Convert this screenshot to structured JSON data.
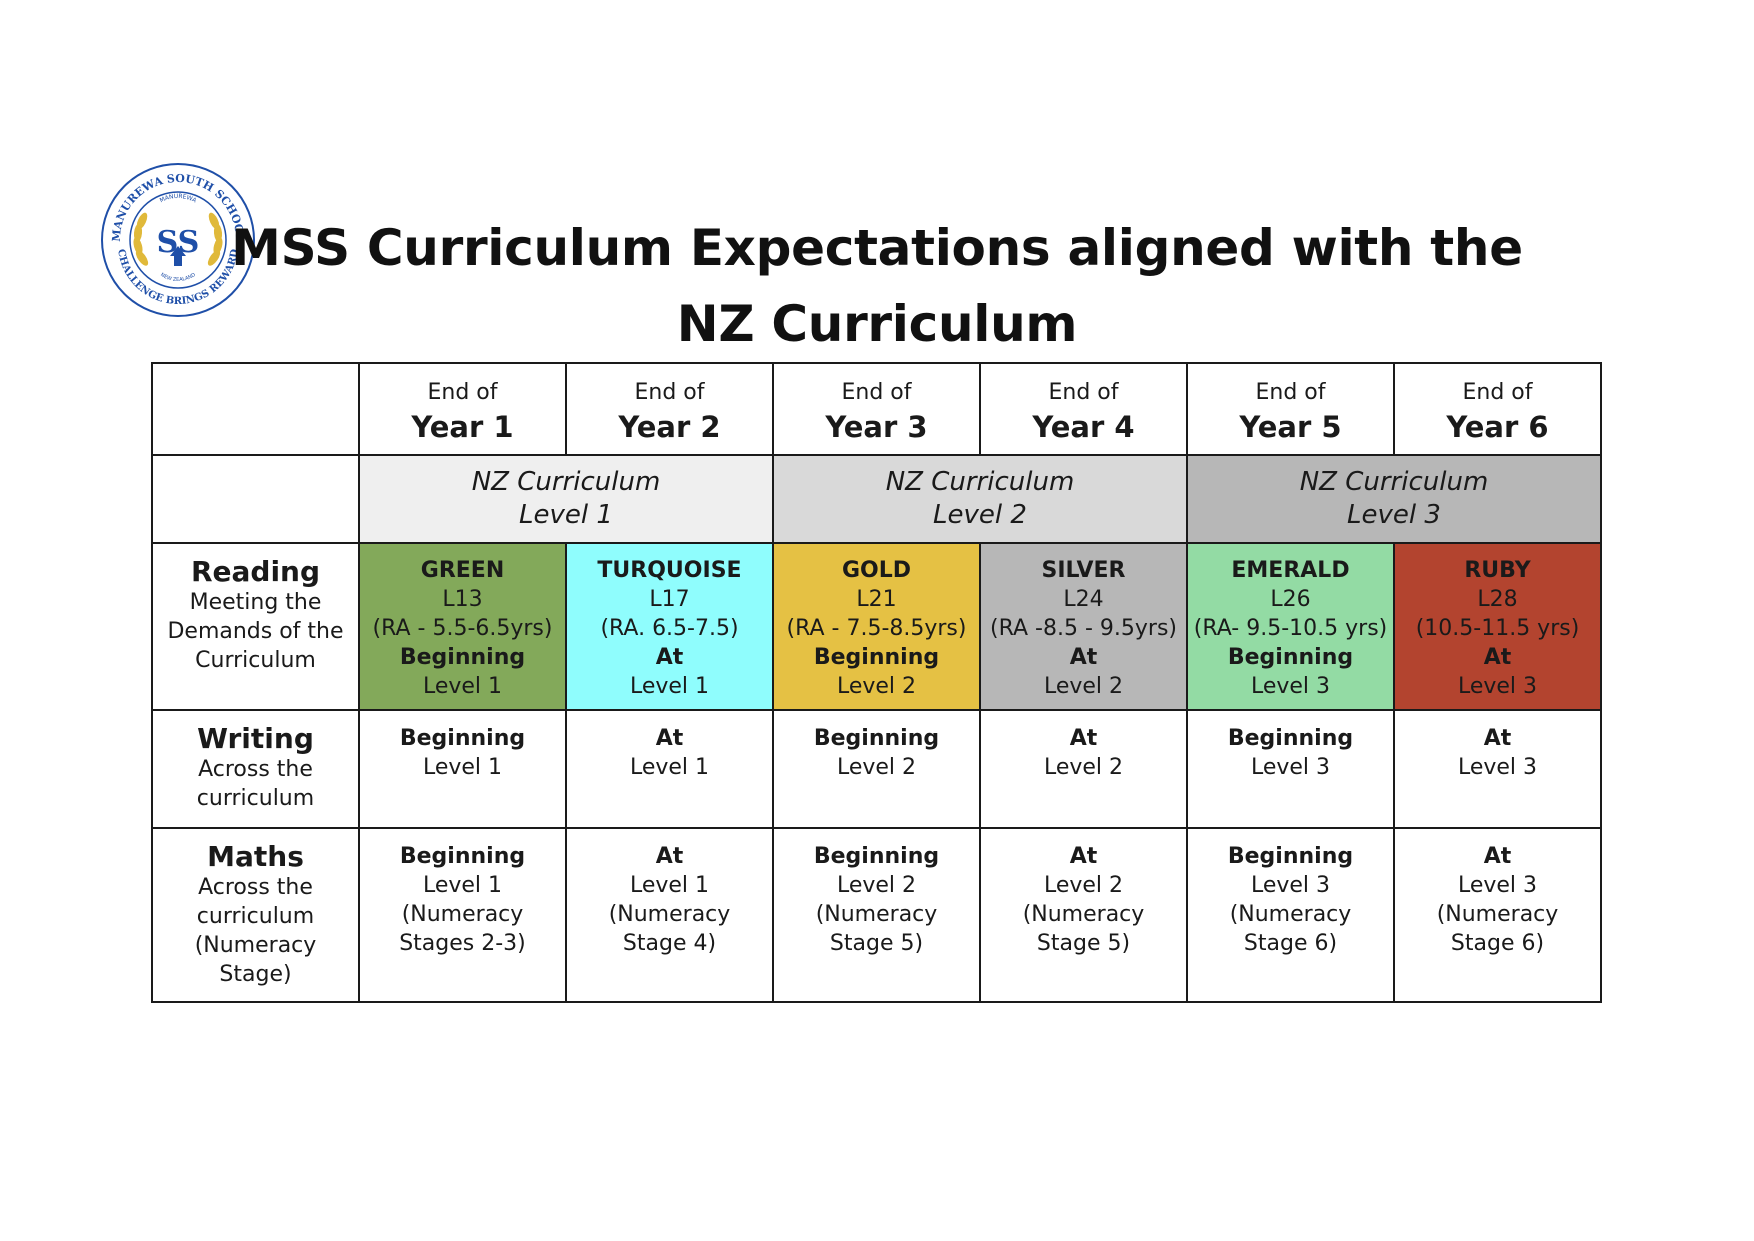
{
  "logo": {
    "outer_text": "MANUREWA SOUTH SCHOOL",
    "inner_top": "MANUREWA",
    "monogram": "SS",
    "inner_bottom": "NEW ZEALAND",
    "motto": "CHALLENGE BRINGS REWARD",
    "colors": {
      "blue": "#1f4fa8",
      "gold": "#e0b93a"
    }
  },
  "title": {
    "line1": "MSS Curriculum Expectations aligned with the",
    "line2": "NZ Curriculum"
  },
  "years": [
    {
      "top": "End of",
      "label": "Year 1"
    },
    {
      "top": "End of",
      "label": "Year 2"
    },
    {
      "top": "End of",
      "label": "Year 3"
    },
    {
      "top": "End of",
      "label": "Year 4"
    },
    {
      "top": "End of",
      "label": "Year 5"
    },
    {
      "top": "End of",
      "label": "Year 6"
    }
  ],
  "levels": [
    {
      "line1": "NZ Curriculum",
      "line2": "Level 1",
      "color": "#efefef"
    },
    {
      "line1": "NZ Curriculum",
      "line2": "Level 2",
      "color": "#d9d9d9"
    },
    {
      "line1": "NZ Curriculum",
      "line2": "Level 3",
      "color": "#b7b7b7"
    }
  ],
  "reading": {
    "title": "Reading",
    "subtitle": [
      "Meeting the",
      "Demands of the",
      "Curriculum"
    ],
    "cells": [
      {
        "color_name": "GREEN",
        "level": "L13",
        "ra": "(RA - 5.5-6.5yrs)",
        "status": "Beginning",
        "curr": "Level 1",
        "bg": "#83a95a"
      },
      {
        "color_name": "TURQUOISE",
        "level": "L17",
        "ra": "(RA. 6.5-7.5)",
        "status": "At",
        "curr": "Level 1",
        "bg": "#8ffdfd"
      },
      {
        "color_name": "GOLD",
        "level": "L21",
        "ra": "(RA - 7.5-8.5yrs)",
        "status": "Beginning",
        "curr": "Level 2",
        "bg": "#e5c144"
      },
      {
        "color_name": "SILVER",
        "level": "L24",
        "ra": "(RA -8.5 - 9.5yrs)",
        "status": "At",
        "curr": "Level 2",
        "bg": "#b7b7b7"
      },
      {
        "color_name": "EMERALD",
        "level": "L26",
        "ra": "(RA- 9.5-10.5 yrs)",
        "status": "Beginning",
        "curr": "Level 3",
        "bg": "#93dba4"
      },
      {
        "color_name": "RUBY",
        "level": "L28",
        "ra": "(10.5-11.5 yrs)",
        "status": "At",
        "curr": "Level 3",
        "bg": "#b3442f"
      }
    ]
  },
  "writing": {
    "title": "Writing",
    "subtitle": [
      "Across the",
      "curriculum"
    ],
    "cells": [
      {
        "status": "Beginning",
        "curr": "Level 1"
      },
      {
        "status": "At",
        "curr": "Level 1"
      },
      {
        "status": "Beginning",
        "curr": "Level 2"
      },
      {
        "status": "At",
        "curr": "Level 2"
      },
      {
        "status": "Beginning",
        "curr": "Level 3"
      },
      {
        "status": "At",
        "curr": "Level 3"
      }
    ]
  },
  "maths": {
    "title": "Maths",
    "subtitle": [
      "Across the",
      "curriculum",
      "(Numeracy",
      "Stage)"
    ],
    "cells": [
      {
        "status": "Beginning",
        "curr": "Level 1",
        "n1": "(Numeracy",
        "n2": "Stages 2-3)"
      },
      {
        "status": "At",
        "curr": "Level 1",
        "n1": "(Numeracy",
        "n2": "Stage 4)"
      },
      {
        "status": "Beginning",
        "curr": "Level 2",
        "n1": "(Numeracy",
        "n2": "Stage 5)"
      },
      {
        "status": "At",
        "curr": "Level 2",
        "n1": "(Numeracy",
        "n2": "Stage 5)"
      },
      {
        "status": "Beginning",
        "curr": "Level 3",
        "n1": "(Numeracy",
        "n2": "Stage 6)"
      },
      {
        "status": "At",
        "curr": "Level 3",
        "n1": "(Numeracy",
        "n2": "Stage 6)"
      }
    ]
  }
}
